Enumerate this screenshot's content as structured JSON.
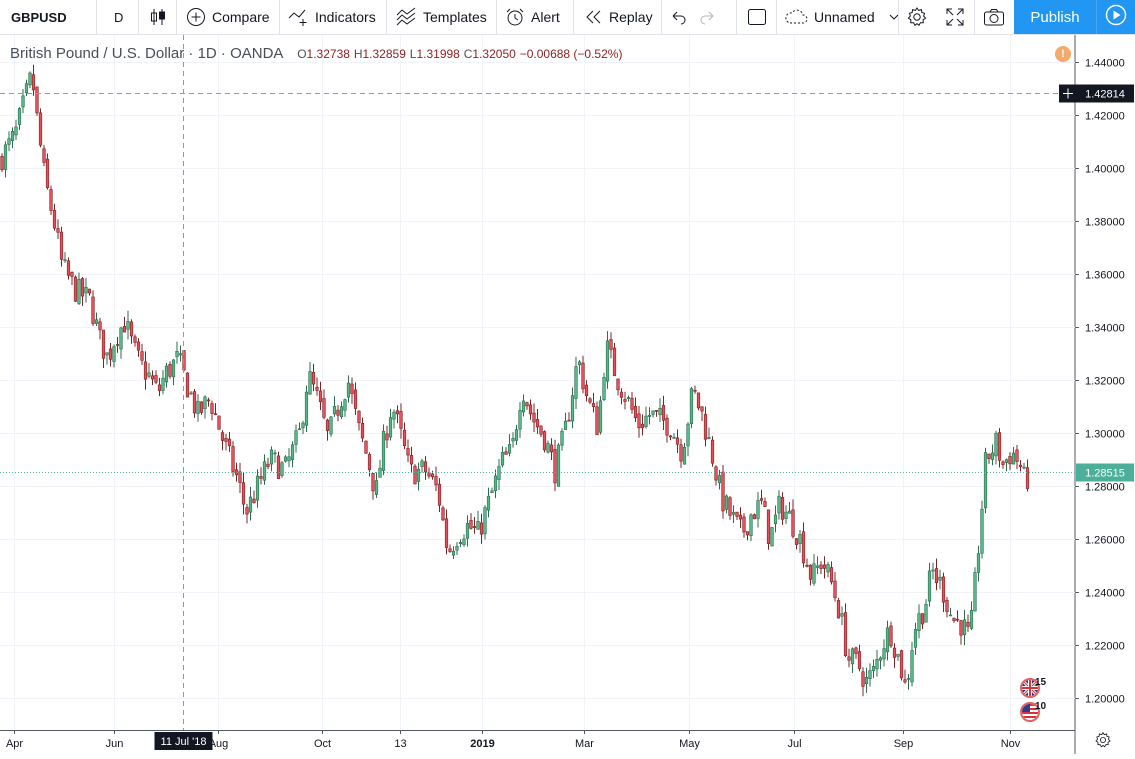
{
  "toolbar": {
    "symbol": "GBPUSD",
    "interval": "D",
    "compare": "Compare",
    "indicators": "Indicators",
    "templates": "Templates",
    "alert": "Alert",
    "replay": "Replay",
    "layout_name": "Unnamed",
    "publish": "Publish"
  },
  "legend": {
    "title": "British Pound / U.S. Dollar · 1D · OANDA",
    "open_key": "O",
    "open": "1.32738",
    "high_key": "H",
    "high": "1.32859",
    "low_key": "L",
    "low": "1.31998",
    "close_key": "C",
    "close": "1.32050",
    "change": "−0.00688 (−0.52%)",
    "warning_icon": "!"
  },
  "colors": {
    "up": "#53b987",
    "down": "#eb4d5c",
    "wick_up": "#2e6b4f",
    "wick_down": "#7a2424",
    "last_price": "#4caf9a",
    "crosshair_label": "#131722",
    "publish": "#2196f3"
  },
  "crosshair": {
    "price_label": "1.42814",
    "date_label": "11 Jul '18"
  },
  "last_price_label": "1.28515",
  "events": [
    {
      "flag": "uk",
      "count": "15"
    },
    {
      "flag": "us",
      "count": "10"
    }
  ],
  "chart_data": {
    "type": "candlestick",
    "x_ticks": [
      "Apr",
      "Jun",
      "Aug",
      "Oct",
      "13",
      "2019",
      "Mar",
      "May",
      "Jul",
      "Sep",
      "Nov"
    ],
    "y_ticks": [
      "1.44000",
      "1.42000",
      "1.40000",
      "1.38000",
      "1.36000",
      "1.34000",
      "1.32000",
      "1.30000",
      "1.28000",
      "1.26000",
      "1.24000",
      "1.22000",
      "1.20000"
    ],
    "ylim": [
      1.188,
      1.45
    ],
    "grid": true,
    "path": [
      [
        0,
        1.403
      ],
      [
        15,
        1.412
      ],
      [
        32,
        1.435
      ],
      [
        38,
        1.415
      ],
      [
        45,
        1.395
      ],
      [
        55,
        1.378
      ],
      [
        62,
        1.363
      ],
      [
        75,
        1.354
      ],
      [
        90,
        1.35
      ],
      [
        100,
        1.335
      ],
      [
        108,
        1.328
      ],
      [
        115,
        1.336
      ],
      [
        125,
        1.342
      ],
      [
        133,
        1.332
      ],
      [
        140,
        1.326
      ],
      [
        148,
        1.322
      ],
      [
        158,
        1.315
      ],
      [
        165,
        1.322
      ],
      [
        178,
        1.328
      ],
      [
        190,
        1.315
      ],
      [
        198,
        1.307
      ],
      [
        210,
        1.313
      ],
      [
        225,
        1.295
      ],
      [
        238,
        1.282
      ],
      [
        246,
        1.27
      ],
      [
        258,
        1.28
      ],
      [
        270,
        1.29
      ],
      [
        285,
        1.286
      ],
      [
        300,
        1.3
      ],
      [
        308,
        1.322
      ],
      [
        318,
        1.312
      ],
      [
        328,
        1.298
      ],
      [
        340,
        1.312
      ],
      [
        348,
        1.32
      ],
      [
        358,
        1.302
      ],
      [
        368,
        1.29
      ],
      [
        376,
        1.277
      ],
      [
        382,
        1.293
      ],
      [
        392,
        1.311
      ],
      [
        400,
        1.3
      ],
      [
        410,
        1.285
      ],
      [
        425,
        1.286
      ],
      [
        438,
        1.278
      ],
      [
        448,
        1.255
      ],
      [
        458,
        1.262
      ],
      [
        468,
        1.265
      ],
      [
        478,
        1.262
      ],
      [
        490,
        1.275
      ],
      [
        502,
        1.289
      ],
      [
        512,
        1.293
      ],
      [
        522,
        1.318
      ],
      [
        532,
        1.306
      ],
      [
        545,
        1.298
      ],
      [
        555,
        1.286
      ],
      [
        565,
        1.3
      ],
      [
        578,
        1.328
      ],
      [
        588,
        1.312
      ],
      [
        598,
        1.302
      ],
      [
        606,
        1.333
      ],
      [
        618,
        1.32
      ],
      [
        628,
        1.312
      ],
      [
        638,
        1.303
      ],
      [
        650,
        1.307
      ],
      [
        660,
        1.305
      ],
      [
        670,
        1.303
      ],
      [
        682,
        1.293
      ],
      [
        693,
        1.316
      ],
      [
        702,
        1.307
      ],
      [
        712,
        1.292
      ],
      [
        722,
        1.275
      ],
      [
        732,
        1.268
      ],
      [
        742,
        1.262
      ],
      [
        752,
        1.27
      ],
      [
        762,
        1.273
      ],
      [
        770,
        1.26
      ],
      [
        780,
        1.273
      ],
      [
        790,
        1.268
      ],
      [
        800,
        1.26
      ],
      [
        812,
        1.245
      ],
      [
        822,
        1.252
      ],
      [
        832,
        1.243
      ],
      [
        840,
        1.232
      ],
      [
        848,
        1.215
      ],
      [
        858,
        1.213
      ],
      [
        866,
        1.206
      ],
      [
        874,
        1.21
      ],
      [
        882,
        1.22
      ],
      [
        890,
        1.226
      ],
      [
        900,
        1.213
      ],
      [
        906,
        1.203
      ],
      [
        914,
        1.226
      ],
      [
        925,
        1.235
      ],
      [
        932,
        1.248
      ],
      [
        942,
        1.242
      ],
      [
        952,
        1.23
      ],
      [
        962,
        1.228
      ],
      [
        970,
        1.222
      ],
      [
        978,
        1.255
      ],
      [
        986,
        1.29
      ],
      [
        996,
        1.296
      ],
      [
        1003,
        1.288
      ],
      [
        1012,
        1.293
      ],
      [
        1020,
        1.288
      ],
      [
        1025,
        1.281
      ],
      [
        1030,
        1.285
      ]
    ]
  }
}
